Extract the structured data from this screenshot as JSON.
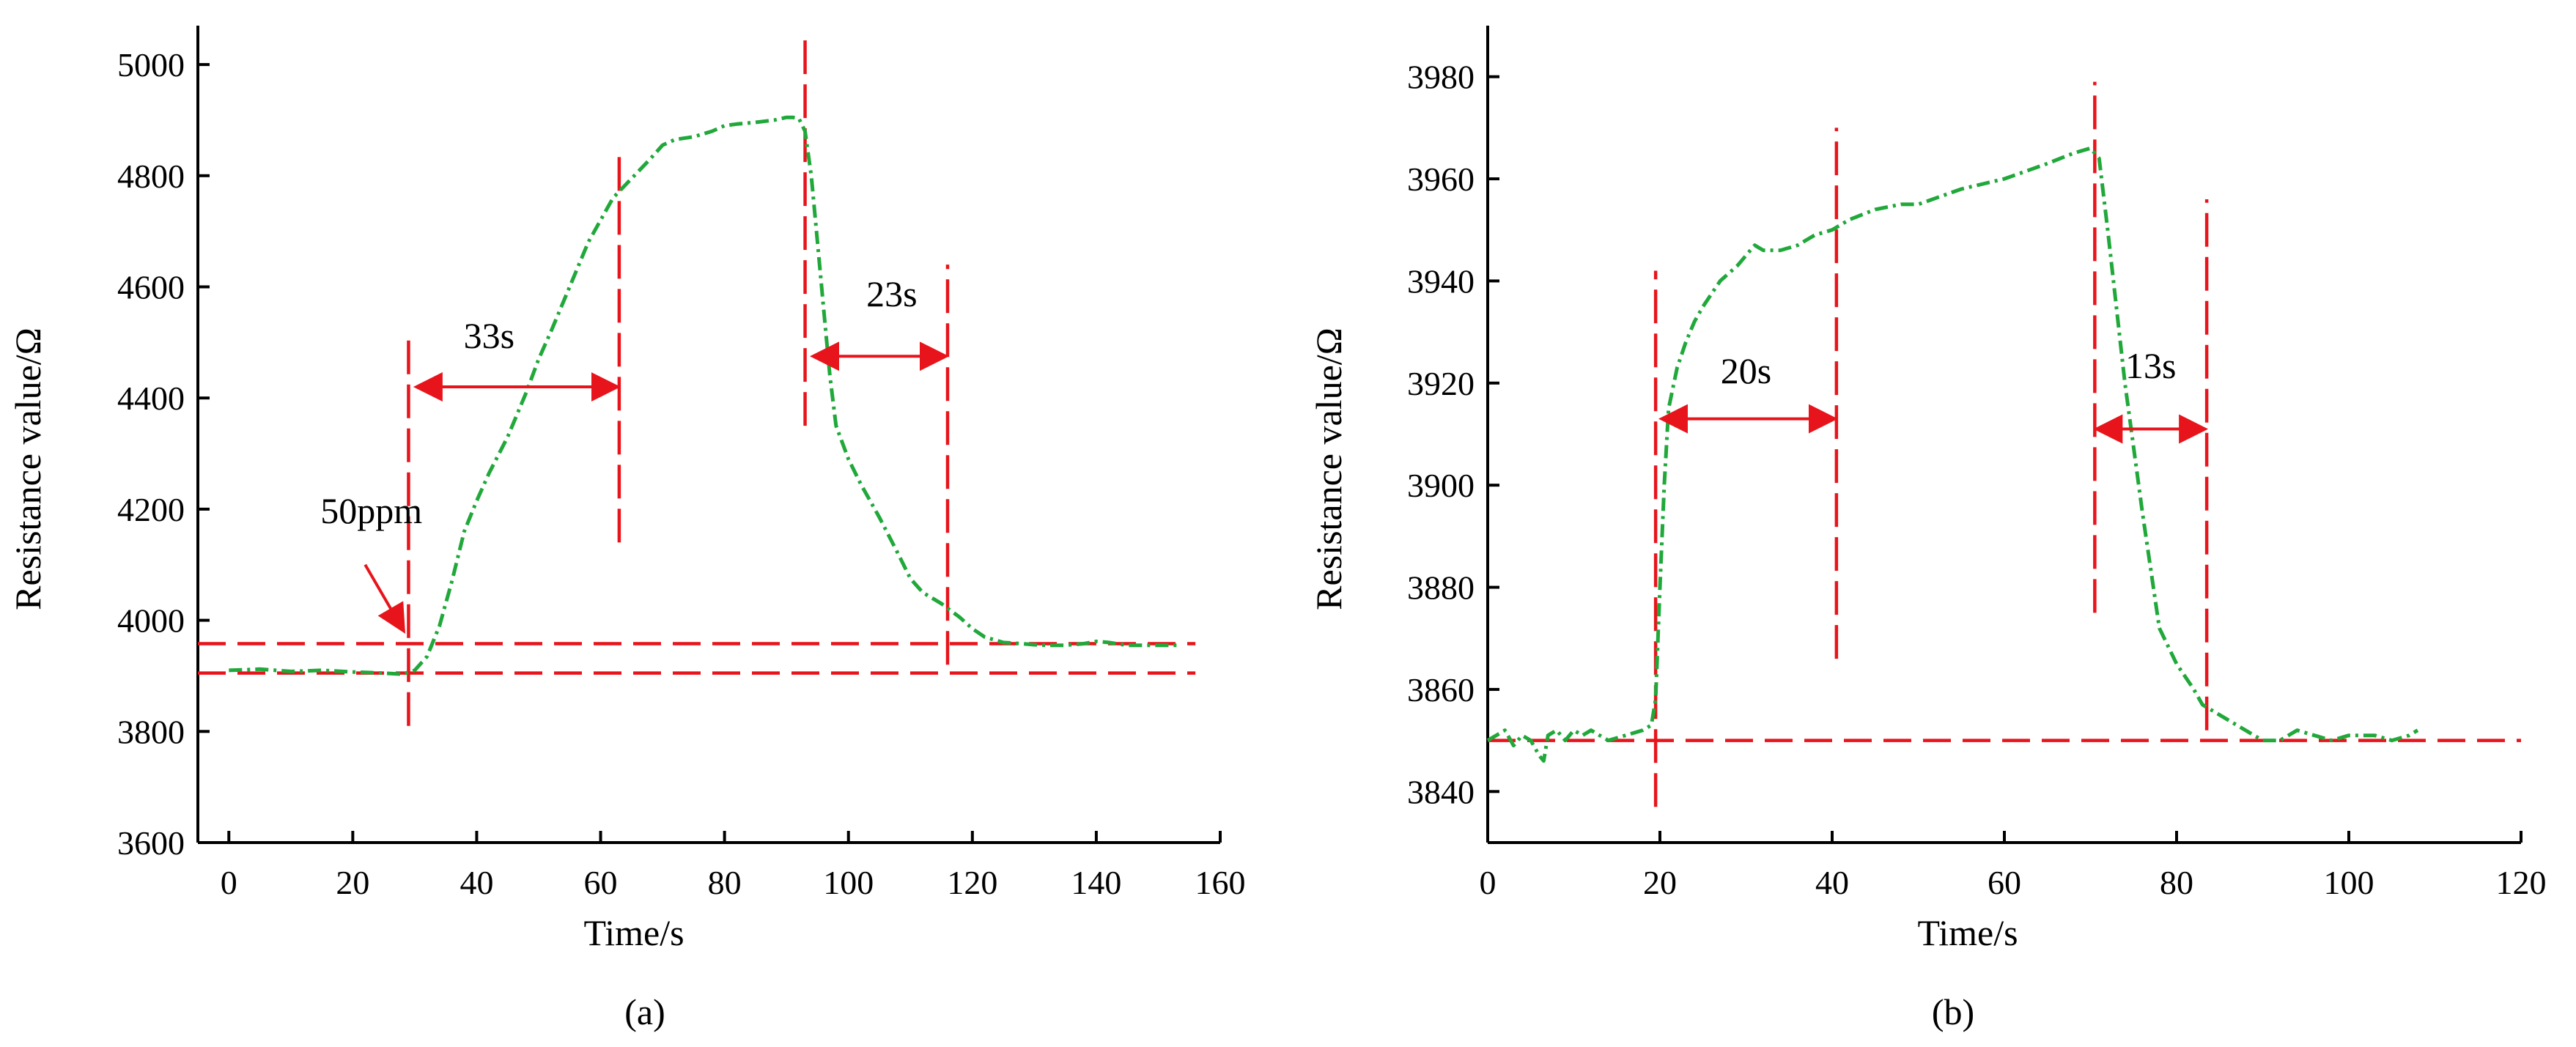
{
  "colors": {
    "curve": "#20A83A",
    "marker": "#E8141B",
    "axis": "#000000"
  },
  "chart_data": [
    {
      "id": "a",
      "type": "line",
      "caption": "(a)",
      "xlabel": "Time/s",
      "ylabel": "Resistance value/Ω",
      "xlim": [
        -5,
        160
      ],
      "ylim": [
        3600,
        5070
      ],
      "xticks": [
        0,
        20,
        40,
        60,
        80,
        100,
        120,
        140,
        160
      ],
      "yticks": [
        3600,
        3800,
        4000,
        4200,
        4400,
        4600,
        4800,
        5000
      ],
      "series": [
        {
          "name": "resistance",
          "style": "dash-dot",
          "x": [
            0,
            5,
            10,
            15,
            20,
            25,
            28,
            30,
            32,
            34,
            36,
            38,
            40,
            42,
            45,
            48,
            50,
            52,
            55,
            58,
            60,
            62,
            65,
            68,
            70,
            72,
            75,
            78,
            80,
            82,
            85,
            88,
            90,
            91,
            92,
            93,
            94,
            95,
            96,
            97,
            98,
            100,
            102,
            105,
            108,
            110,
            112,
            115,
            118,
            120,
            122,
            125,
            128,
            130,
            132,
            135,
            138,
            140,
            142,
            145,
            150,
            153
          ],
          "y": [
            3910,
            3912,
            3908,
            3910,
            3907,
            3905,
            3903,
            3910,
            3935,
            3990,
            4070,
            4160,
            4215,
            4265,
            4330,
            4410,
            4470,
            4520,
            4600,
            4680,
            4720,
            4760,
            4795,
            4830,
            4855,
            4865,
            4870,
            4880,
            4890,
            4893,
            4896,
            4900,
            4905,
            4905,
            4903,
            4880,
            4800,
            4680,
            4560,
            4440,
            4350,
            4290,
            4245,
            4185,
            4120,
            4075,
            4050,
            4030,
            4005,
            3985,
            3970,
            3960,
            3958,
            3956,
            3955,
            3955,
            3958,
            3962,
            3960,
            3955,
            3955,
            3955
          ]
        }
      ],
      "vlines": [
        {
          "x": 29,
          "y0": 3810,
          "y1": 4520
        },
        {
          "x": 63,
          "y0": 4140,
          "y1": 4850
        },
        {
          "x": 93,
          "y0": 4350,
          "y1": 5060
        },
        {
          "x": 116,
          "y0": 3920,
          "y1": 4640
        }
      ],
      "hlines": [
        {
          "y": 3958,
          "x0": -5,
          "x1": 156
        },
        {
          "y": 3905,
          "x0": -5,
          "x1": 156
        }
      ],
      "intervals": [
        {
          "label": "33s",
          "from": 30,
          "to": 63,
          "y": 4420,
          "label_x": 42,
          "label_y": 4490
        },
        {
          "label": "23s",
          "from": 94,
          "to": 116,
          "y": 4475,
          "label_x": 107,
          "label_y": 4565
        }
      ],
      "callout": {
        "label": "50ppm",
        "label_x": 23,
        "label_y": 4175,
        "from_x": 22,
        "from_y": 4100,
        "to_x": 28,
        "to_y": 3985
      }
    },
    {
      "id": "b",
      "type": "line",
      "caption": "(b)",
      "xlabel": "Time/s",
      "ylabel": "Resistance value/Ω",
      "xlim": [
        0,
        120
      ],
      "ylim": [
        3830,
        3990
      ],
      "xticks": [
        0,
        20,
        40,
        60,
        80,
        100,
        120
      ],
      "yticks": [
        3840,
        3860,
        3880,
        3900,
        3920,
        3940,
        3960,
        3980
      ],
      "series": [
        {
          "name": "resistance",
          "style": "dash-dot",
          "x": [
            0,
            2,
            3,
            4,
            5,
            6,
            6.5,
            7,
            8,
            9,
            10,
            11,
            12,
            14,
            16,
            18,
            19,
            19.5,
            20,
            20.5,
            21,
            22,
            23,
            24,
            25,
            27,
            29,
            31,
            32,
            34,
            36,
            38,
            40,
            42,
            45,
            48,
            50,
            55,
            60,
            65,
            68,
            70,
            71,
            72,
            74,
            76,
            78,
            80,
            82,
            83,
            85,
            88,
            90,
            92,
            94,
            96,
            98,
            100,
            103,
            105,
            107,
            108
          ],
          "y": [
            3850,
            3852,
            3849,
            3851,
            3850,
            3847,
            3846,
            3851,
            3852,
            3850,
            3852,
            3851,
            3852,
            3850,
            3851,
            3852,
            3853,
            3858,
            3880,
            3900,
            3915,
            3923,
            3928,
            3932,
            3935,
            3940,
            3943,
            3947,
            3946,
            3946,
            3947,
            3949,
            3950,
            3952,
            3954,
            3955,
            3955,
            3958,
            3960,
            3963,
            3965,
            3966,
            3964,
            3950,
            3920,
            3895,
            3872,
            3865,
            3860,
            3857,
            3855,
            3852,
            3850,
            3850,
            3852,
            3851,
            3850,
            3851,
            3851,
            3850,
            3851,
            3852
          ]
        }
      ],
      "vlines": [
        {
          "x": 19.5,
          "y0": 3837,
          "y1": 3942
        },
        {
          "x": 40.5,
          "y0": 3866,
          "y1": 3970
        },
        {
          "x": 70.5,
          "y0": 3875,
          "y1": 3979
        },
        {
          "x": 83.5,
          "y0": 3852,
          "y1": 3956
        }
      ],
      "hlines": [
        {
          "y": 3850,
          "x0": 0,
          "x1": 120
        }
      ],
      "intervals": [
        {
          "label": "20s",
          "from": 20,
          "to": 40.5,
          "y": 3913,
          "label_x": 30,
          "label_y": 3920
        },
        {
          "label": "13s",
          "from": 70.5,
          "to": 83.5,
          "y": 3911,
          "label_x": 77,
          "label_y": 3921
        }
      ]
    }
  ]
}
